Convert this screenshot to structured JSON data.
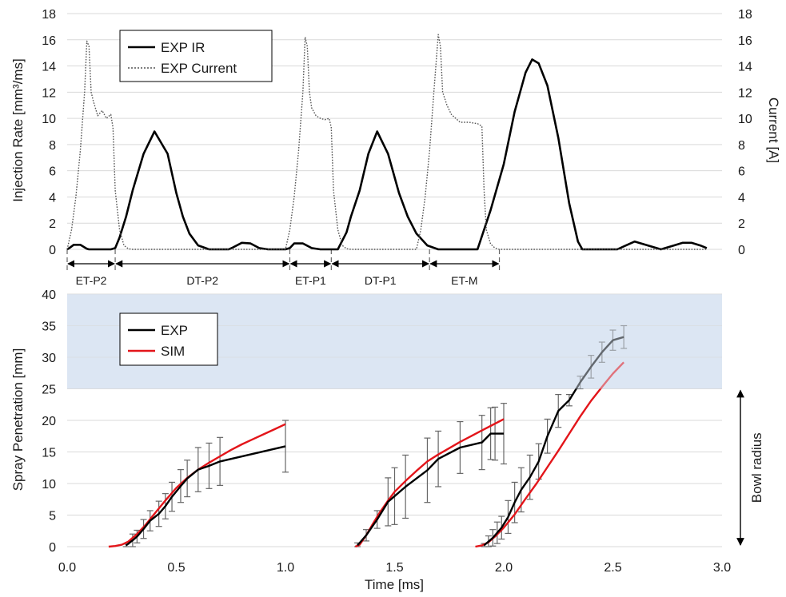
{
  "chart_data": [
    {
      "type": "line",
      "panel": "top",
      "title": "",
      "ylabel_left": "Injection Rate [mm³/ms]",
      "ylabel_right": "Current [A]",
      "ylim": [
        0,
        18
      ],
      "yticks": [
        "0",
        "2",
        "4",
        "6",
        "8",
        "10",
        "12",
        "14",
        "16",
        "18"
      ],
      "xlim": [
        0,
        3.0
      ],
      "grid": true,
      "legend": {
        "placement": "top-left",
        "entries": [
          "EXP IR",
          "EXP Current"
        ]
      },
      "series": [
        {
          "name": "EXP IR",
          "style": "solid",
          "color": "#000000",
          "x": [
            0.0,
            0.01,
            0.03,
            0.06,
            0.09,
            0.1,
            0.12,
            0.2,
            0.22,
            0.24,
            0.27,
            0.3,
            0.35,
            0.4,
            0.46,
            0.5,
            0.53,
            0.56,
            0.6,
            0.65,
            0.7,
            0.74,
            0.76,
            0.8,
            0.84,
            0.88,
            0.92,
            0.96,
            1.0,
            1.02,
            1.04,
            1.08,
            1.12,
            1.16,
            1.2,
            1.24,
            1.28,
            1.3,
            1.34,
            1.38,
            1.42,
            1.47,
            1.52,
            1.56,
            1.6,
            1.65,
            1.7,
            1.74,
            1.76,
            1.8,
            1.84,
            1.88,
            1.94,
            2.0,
            2.05,
            2.1,
            2.13,
            2.16,
            2.2,
            2.25,
            2.3,
            2.34,
            2.36,
            2.4,
            2.44,
            2.48,
            2.52,
            2.56,
            2.6,
            2.72,
            2.74,
            2.78,
            2.82,
            2.86,
            2.9,
            2.93
          ],
          "y": [
            0.0,
            0.1,
            0.35,
            0.35,
            0.05,
            0.0,
            0.0,
            0.0,
            0.1,
            0.9,
            2.5,
            4.5,
            7.3,
            9.0,
            7.3,
            4.3,
            2.5,
            1.2,
            0.3,
            0.0,
            0.0,
            0.0,
            0.15,
            0.5,
            0.45,
            0.1,
            0.0,
            0.0,
            0.0,
            0.1,
            0.45,
            0.45,
            0.1,
            0.0,
            0.0,
            0.0,
            1.3,
            2.5,
            4.5,
            7.3,
            9.0,
            7.3,
            4.3,
            2.5,
            1.2,
            0.3,
            0.0,
            0.0,
            0.0,
            0.0,
            0.0,
            0.0,
            3.0,
            6.5,
            10.5,
            13.5,
            14.5,
            14.2,
            12.5,
            8.5,
            3.5,
            0.6,
            0.0,
            0.0,
            0.0,
            0.0,
            0.0,
            0.3,
            0.6,
            0.0,
            0.1,
            0.3,
            0.5,
            0.5,
            0.3,
            0.1
          ]
        },
        {
          "name": "EXP Current",
          "style": "dotted",
          "color": "#555555",
          "x": [
            0.0,
            0.02,
            0.04,
            0.06,
            0.08,
            0.09,
            0.1,
            0.11,
            0.12,
            0.14,
            0.16,
            0.18,
            0.2,
            0.21,
            0.22,
            0.24,
            0.26,
            0.28,
            0.3,
            1.0,
            1.02,
            1.04,
            1.06,
            1.08,
            1.09,
            1.1,
            1.11,
            1.12,
            1.14,
            1.16,
            1.18,
            1.2,
            1.21,
            1.22,
            1.24,
            1.26,
            1.28,
            1.3,
            1.6,
            1.62,
            1.64,
            1.66,
            1.68,
            1.7,
            1.71,
            1.72,
            1.73,
            1.74,
            1.76,
            1.8,
            1.84,
            1.88,
            1.9,
            1.91,
            1.92,
            1.94,
            1.96,
            1.98,
            2.0,
            2.1,
            2.2,
            2.3,
            2.4,
            2.5,
            2.6,
            2.7,
            2.8,
            2.9,
            2.93
          ],
          "y": [
            0.0,
            1.5,
            4.0,
            7.5,
            12.0,
            15.9,
            15.5,
            12.0,
            11.3,
            10.2,
            10.6,
            10.0,
            10.3,
            9.3,
            4.5,
            1.5,
            0.3,
            0.05,
            0.0,
            0.0,
            1.5,
            4.0,
            7.5,
            12.0,
            16.2,
            15.5,
            12.0,
            10.8,
            10.2,
            10.0,
            9.9,
            10.0,
            9.3,
            4.5,
            1.5,
            0.3,
            0.05,
            0.0,
            0.0,
            1.5,
            4.0,
            7.5,
            12.0,
            16.4,
            15.5,
            12.0,
            11.5,
            11.0,
            10.3,
            9.7,
            9.7,
            9.6,
            9.4,
            4.5,
            1.5,
            0.4,
            0.1,
            0.0,
            0.0,
            0.0,
            0.0,
            0.0,
            0.0,
            0.0,
            0.0,
            0.0,
            0.0,
            0.0,
            0.0
          ]
        }
      ]
    },
    {
      "type": "line",
      "panel": "bottom",
      "title": "",
      "xlabel": "Time [ms]",
      "ylabel": "Spray Penetration [mm]",
      "xlim": [
        0.0,
        3.0
      ],
      "ylim": [
        0,
        40
      ],
      "xticks": [
        "0.0",
        "0.5",
        "1.0",
        "1.5",
        "2.0",
        "2.5",
        "3.0"
      ],
      "yticks": [
        "0",
        "5",
        "10",
        "15",
        "20",
        "25",
        "30",
        "35",
        "40"
      ],
      "grid": true,
      "shaded_band": {
        "y_from": 25,
        "y_to": 40,
        "color": "#dce6f3"
      },
      "annotation": {
        "text": "Bowl radius",
        "y_from": 0,
        "y_to": 25
      },
      "legend": {
        "placement": "top-left",
        "entries": [
          "EXP",
          "SIM"
        ]
      },
      "series": [
        {
          "name": "EXP",
          "color": "#000000",
          "segments": [
            {
              "x": [
                0.27,
                0.3,
                0.32,
                0.35,
                0.38,
                0.42,
                0.45,
                0.48,
                0.52,
                0.55,
                0.6,
                0.65,
                0.7,
                1.0
              ],
              "y": [
                0.2,
                1.0,
                1.6,
                2.8,
                4.1,
                5.2,
                6.4,
                7.9,
                9.6,
                10.8,
                12.2,
                12.8,
                13.5,
                15.9
              ],
              "err": [
                0.2,
                1.0,
                1.0,
                1.5,
                1.6,
                2.0,
                2.0,
                2.3,
                2.6,
                2.9,
                3.5,
                3.6,
                3.8,
                4.1
              ]
            },
            {
              "x": [
                1.33,
                1.37,
                1.42,
                1.47,
                1.5,
                1.55,
                1.65,
                1.7,
                1.8,
                1.9,
                1.94,
                1.96,
                2.0
              ],
              "y": [
                0.2,
                1.8,
                4.3,
                7.1,
                8.0,
                9.5,
                12.1,
                13.9,
                15.7,
                16.5,
                17.9,
                17.9,
                17.9
              ],
              "err": [
                0.4,
                0.9,
                1.4,
                3.8,
                4.5,
                5.0,
                5.1,
                4.4,
                4.1,
                4.3,
                4.1,
                4.2,
                4.8
              ]
            },
            {
              "x": [
                1.91,
                1.93,
                1.95,
                1.97,
                1.99,
                2.02,
                2.05,
                2.08,
                2.12,
                2.16,
                2.2,
                2.25,
                2.3,
                2.35,
                2.4,
                2.45,
                2.5,
                2.55
              ],
              "y": [
                0.2,
                0.8,
                1.4,
                2.2,
                3.0,
                4.7,
                7.0,
                9.0,
                11.0,
                13.5,
                17.5,
                21.5,
                23.2,
                26.0,
                28.5,
                30.8,
                32.7,
                33.2
              ],
              "err": [
                0.3,
                0.9,
                1.3,
                1.7,
                1.8,
                2.6,
                3.2,
                3.5,
                3.5,
                2.8,
                2.7,
                2.6,
                0.9,
                1.0,
                1.8,
                1.6,
                1.6,
                1.8
              ]
            }
          ]
        },
        {
          "name": "SIM",
          "color": "#e3151a",
          "segments": [
            {
              "x": [
                0.19,
                0.22,
                0.25,
                0.28,
                0.32,
                0.36,
                0.4,
                0.45,
                0.5,
                0.55,
                0.6,
                0.65,
                0.7,
                0.75,
                0.8,
                0.85,
                0.9,
                0.95,
                1.0
              ],
              "y": [
                0.0,
                0.1,
                0.3,
                0.8,
                2.0,
                3.5,
                5.2,
                7.3,
                9.3,
                10.9,
                12.2,
                13.3,
                14.3,
                15.3,
                16.2,
                17.0,
                17.8,
                18.6,
                19.4
              ]
            },
            {
              "x": [
                1.32,
                1.34,
                1.37,
                1.4,
                1.43,
                1.47,
                1.5,
                1.55,
                1.6,
                1.65,
                1.7,
                1.75,
                1.8,
                1.85,
                1.9,
                1.95,
                2.0
              ],
              "y": [
                0.0,
                0.3,
                1.8,
                3.6,
                5.3,
                7.3,
                8.7,
                10.4,
                12.0,
                13.5,
                14.6,
                15.6,
                16.6,
                17.5,
                18.4,
                19.3,
                20.2
              ]
            },
            {
              "x": [
                1.87,
                1.9,
                1.93,
                1.96,
                2.0,
                2.05,
                2.1,
                2.15,
                2.2,
                2.25,
                2.3,
                2.35,
                2.4,
                2.45,
                2.5,
                2.55
              ],
              "y": [
                0.0,
                0.2,
                0.7,
                1.6,
                3.0,
                5.1,
                7.6,
                10.0,
                12.6,
                15.2,
                17.9,
                20.6,
                23.1,
                25.3,
                27.4,
                29.2
              ]
            }
          ]
        }
      ]
    }
  ],
  "segments": [
    {
      "label": "ET-P2",
      "from": 0.0,
      "to": 0.22
    },
    {
      "label": "DT-P2",
      "from": 0.22,
      "to": 1.02
    },
    {
      "label": "ET-P1",
      "from": 1.02,
      "to": 1.21
    },
    {
      "label": "DT-P1",
      "from": 1.21,
      "to": 1.66
    },
    {
      "label": "ET-M",
      "from": 1.66,
      "to": 1.98
    }
  ]
}
